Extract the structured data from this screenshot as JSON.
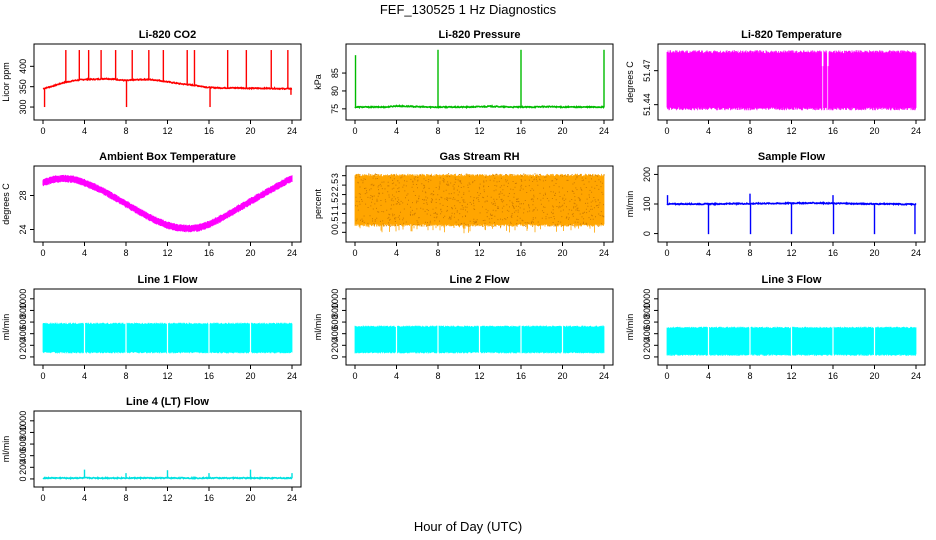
{
  "figure": {
    "title": "FEF_130525  1 Hz Diagnostics",
    "xlabel": "Hour of Day (UTC)"
  },
  "chart_data": [
    {
      "type": "line",
      "title": "Li-820 CO2",
      "ylabel": "Licor ppm",
      "color": "#ff0000",
      "xlim": [
        0,
        24
      ],
      "ylim": [
        278,
        445
      ],
      "xticks": [
        0,
        4,
        8,
        12,
        16,
        20,
        24
      ],
      "yticks": [
        300,
        350,
        400
      ],
      "series": [
        {
          "x": [
            0,
            1,
            2,
            3,
            4,
            5,
            6,
            7,
            8,
            9,
            10,
            11,
            12,
            13,
            14,
            15,
            16,
            17,
            18,
            19,
            20,
            21,
            22,
            23,
            24
          ],
          "y": [
            345,
            352,
            360,
            365,
            368,
            368,
            370,
            368,
            365,
            367,
            368,
            366,
            362,
            358,
            355,
            352,
            348,
            347,
            347,
            347,
            346,
            346,
            346,
            345,
            345
          ]
        }
      ],
      "spikes": [
        {
          "x": 0.15,
          "y": 300
        },
        {
          "x": 2.2,
          "y": 440
        },
        {
          "x": 3.5,
          "y": 440
        },
        {
          "x": 4.4,
          "y": 440
        },
        {
          "x": 5.6,
          "y": 440
        },
        {
          "x": 7.0,
          "y": 440
        },
        {
          "x": 8.05,
          "y": 300
        },
        {
          "x": 8.6,
          "y": 440
        },
        {
          "x": 10.2,
          "y": 440
        },
        {
          "x": 11.6,
          "y": 440
        },
        {
          "x": 13.9,
          "y": 440
        },
        {
          "x": 14.6,
          "y": 440
        },
        {
          "x": 16.1,
          "y": 300
        },
        {
          "x": 17.8,
          "y": 440
        },
        {
          "x": 19.6,
          "y": 440
        },
        {
          "x": 22.0,
          "y": 440
        },
        {
          "x": 23.6,
          "y": 440
        },
        {
          "x": 23.9,
          "y": 330
        }
      ]
    },
    {
      "type": "line",
      "title": "Li-820 Pressure",
      "ylabel": "kPa",
      "color": "#00bb00",
      "xlim": [
        0,
        24
      ],
      "ylim": [
        73,
        92
      ],
      "xticks": [
        0,
        4,
        8,
        12,
        16,
        20,
        24
      ],
      "yticks": [
        75,
        80,
        85
      ],
      "series": [
        {
          "x": [
            0,
            1,
            2,
            3,
            4,
            5,
            6,
            7,
            8,
            9,
            10,
            11,
            12,
            13,
            14,
            15,
            16,
            17,
            18,
            19,
            20,
            21,
            22,
            23,
            24
          ],
          "y": [
            75.5,
            75.5,
            75.5,
            75.5,
            75.8,
            75.7,
            75.6,
            75.5,
            75.5,
            75.5,
            75.5,
            75.5,
            75.6,
            75.7,
            75.6,
            75.5,
            75.5,
            75.5,
            75.6,
            75.6,
            75.5,
            75.5,
            75.5,
            75.5,
            75.5
          ]
        }
      ],
      "spikes": [
        {
          "x": 0.05,
          "y": 90
        },
        {
          "x": 8.0,
          "y": 91.5
        },
        {
          "x": 16.0,
          "y": 91.5
        },
        {
          "x": 24.0,
          "y": 91.5
        }
      ]
    },
    {
      "type": "line",
      "title": "Li-820 Temperature",
      "ylabel": "degrees C",
      "color": "#ff00ff",
      "xlim": [
        0,
        24
      ],
      "ylim": [
        51.43,
        51.49
      ],
      "xticks": [
        0,
        4,
        8,
        12,
        16,
        20,
        24
      ],
      "yticks": [
        51.44,
        51.47
      ],
      "fill_band": [
        51.435,
        51.488
      ],
      "gaps": [
        15.0,
        15.5
      ]
    },
    {
      "type": "line",
      "title": "Ambient Box Temperature",
      "ylabel": "degrees C",
      "color": "#ff00ff",
      "xlim": [
        0,
        24
      ],
      "ylim": [
        23,
        31
      ],
      "xticks": [
        0,
        4,
        8,
        12,
        16,
        20,
        24
      ],
      "yticks": [
        24,
        28
      ],
      "series": [
        {
          "x": [
            0,
            1,
            2,
            3,
            4,
            5,
            6,
            7,
            8,
            9,
            10,
            11,
            12,
            13,
            14,
            15,
            16,
            17,
            18,
            19,
            20,
            21,
            22,
            23,
            24
          ],
          "y": [
            29.5,
            29.9,
            30.0,
            29.9,
            29.5,
            29.0,
            28.4,
            27.7,
            27.0,
            26.3,
            25.6,
            25.0,
            24.5,
            24.2,
            24.1,
            24.2,
            24.6,
            25.2,
            25.9,
            26.6,
            27.3,
            28.0,
            28.7,
            29.4,
            30.0
          ]
        }
      ],
      "band_half_width": 0.45
    },
    {
      "type": "line",
      "title": "Gas Stream RH",
      "ylabel": "percent",
      "color": "#ffa500",
      "xlim": [
        0,
        24
      ],
      "ylim": [
        -0.3,
        3.3
      ],
      "xticks": [
        0,
        4,
        8,
        12,
        16,
        20,
        24
      ],
      "yticks": [
        0.0,
        0.5,
        1.0,
        1.5,
        2.0,
        2.5,
        3.0
      ],
      "fill_band": [
        0.3,
        3.1
      ]
    },
    {
      "type": "line",
      "title": "Sample Flow",
      "ylabel": "ml/min",
      "color": "#0000ff",
      "xlim": [
        0,
        24
      ],
      "ylim": [
        -15,
        215
      ],
      "xticks": [
        0,
        4,
        8,
        12,
        16,
        20,
        24
      ],
      "yticks": [
        0,
        100,
        200
      ],
      "series": [
        {
          "x": [
            0,
            1,
            2,
            3,
            4,
            5,
            6,
            7,
            8,
            9,
            10,
            11,
            12,
            13,
            14,
            15,
            16,
            17,
            18,
            19,
            20,
            21,
            22,
            23,
            24
          ],
          "y": [
            100,
            100,
            100,
            100,
            100,
            100,
            101,
            101,
            101,
            102,
            102,
            102,
            103,
            103,
            103,
            103,
            102,
            102,
            101,
            101,
            100,
            100,
            100,
            99,
            99
          ]
        }
      ],
      "spikes": [
        {
          "x": 0.05,
          "y": 130
        },
        {
          "x": 4.0,
          "y": -2
        },
        {
          "x": 8.0,
          "y": 135
        },
        {
          "x": 8.05,
          "y": -2
        },
        {
          "x": 12.0,
          "y": -2
        },
        {
          "x": 16.0,
          "y": 130
        },
        {
          "x": 16.05,
          "y": -2
        },
        {
          "x": 20.0,
          "y": -2
        },
        {
          "x": 23.9,
          "y": -2
        }
      ]
    },
    {
      "type": "area",
      "title": "Line 1 Flow",
      "ylabel": "ml/min",
      "color": "#00ffff",
      "xlim": [
        0,
        24
      ],
      "ylim": [
        -70,
        1100
      ],
      "xticks": [
        0,
        4,
        8,
        12,
        16,
        20,
        24
      ],
      "yticks": [
        0,
        200,
        400,
        600,
        800,
        1000
      ],
      "fill_band": [
        60,
        590
      ],
      "gaps": [
        4.0,
        8.0,
        12.0,
        16.0,
        20.0
      ]
    },
    {
      "type": "area",
      "title": "Line 2 Flow",
      "ylabel": "ml/min",
      "color": "#00ffff",
      "xlim": [
        0,
        24
      ],
      "ylim": [
        -70,
        1100
      ],
      "xticks": [
        0,
        4,
        8,
        12,
        16,
        20,
        24
      ],
      "yticks": [
        0,
        200,
        400,
        600,
        800,
        1000
      ],
      "fill_band": [
        60,
        540
      ],
      "gaps": [
        4.0,
        8.0,
        12.0,
        16.0,
        20.0
      ]
    },
    {
      "type": "area",
      "title": "Line 3 Flow",
      "ylabel": "ml/min",
      "color": "#00ffff",
      "xlim": [
        0,
        24
      ],
      "ylim": [
        -70,
        1100
      ],
      "xticks": [
        0,
        4,
        8,
        12,
        16,
        20,
        24
      ],
      "yticks": [
        0,
        200,
        400,
        600,
        800,
        1000
      ],
      "fill_band": [
        20,
        520
      ],
      "gaps": [
        4.0,
        8.0,
        12.0,
        16.0,
        20.0
      ]
    },
    {
      "type": "line",
      "title": "Line 4 (LT) Flow",
      "ylabel": "ml/min",
      "color": "#00e0e0",
      "xlim": [
        0,
        24
      ],
      "ylim": [
        -70,
        1100
      ],
      "xticks": [
        0,
        4,
        8,
        12,
        16,
        20,
        24
      ],
      "yticks": [
        0,
        200,
        400,
        600,
        800,
        1000
      ],
      "series": [
        {
          "x": [
            0,
            24
          ],
          "y": [
            15,
            15
          ]
        }
      ],
      "spikes": [
        {
          "x": 4.0,
          "y": 160
        },
        {
          "x": 8.0,
          "y": 100
        },
        {
          "x": 12.0,
          "y": 150
        },
        {
          "x": 16.0,
          "y": 100
        },
        {
          "x": 20.0,
          "y": 160
        },
        {
          "x": 24.0,
          "y": 100
        }
      ]
    }
  ]
}
